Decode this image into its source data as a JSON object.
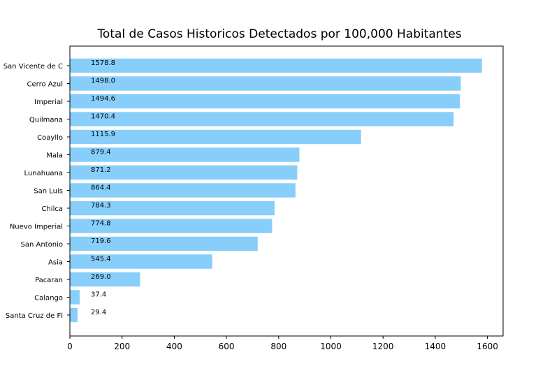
{
  "chart_data": {
    "type": "bar",
    "orientation": "horizontal",
    "title": "Total de Casos Historicos Detectados por 100,000 Habitantes",
    "xlabel": "",
    "ylabel": "",
    "categories": [
      "San Vicente de C",
      "Cerro Azul",
      "Imperial",
      "Quilmana",
      "Coayllo",
      "Mala",
      "Lunahuana",
      "San Luis",
      "Chilca",
      "Nuevo Imperial",
      "San Antonio",
      "Asia",
      "Pacaran",
      "Calango",
      "Santa Cruz de Fl"
    ],
    "values": [
      1578.8,
      1498.0,
      1494.6,
      1470.4,
      1115.9,
      879.4,
      871.2,
      864.4,
      784.3,
      774.8,
      719.6,
      545.4,
      269.0,
      37.4,
      29.4
    ],
    "value_labels": [
      "1578.8",
      "1498.0",
      "1494.6",
      "1470.4",
      "1115.9",
      "879.4",
      "871.2",
      "864.4",
      "784.3",
      "774.8",
      "719.6",
      "545.4",
      "269.0",
      "37.4",
      "29.4"
    ],
    "xlim": [
      0,
      1660
    ],
    "xticks": [
      0,
      200,
      400,
      600,
      800,
      1000,
      1200,
      1400,
      1600
    ],
    "xtick_labels": [
      "0",
      "200",
      "400",
      "600",
      "800",
      "1000",
      "1200",
      "1400",
      "1600"
    ],
    "grid": false,
    "legend": false,
    "colors": {
      "bar": "#87cefa",
      "text": "#000000",
      "axis": "#000000"
    }
  }
}
